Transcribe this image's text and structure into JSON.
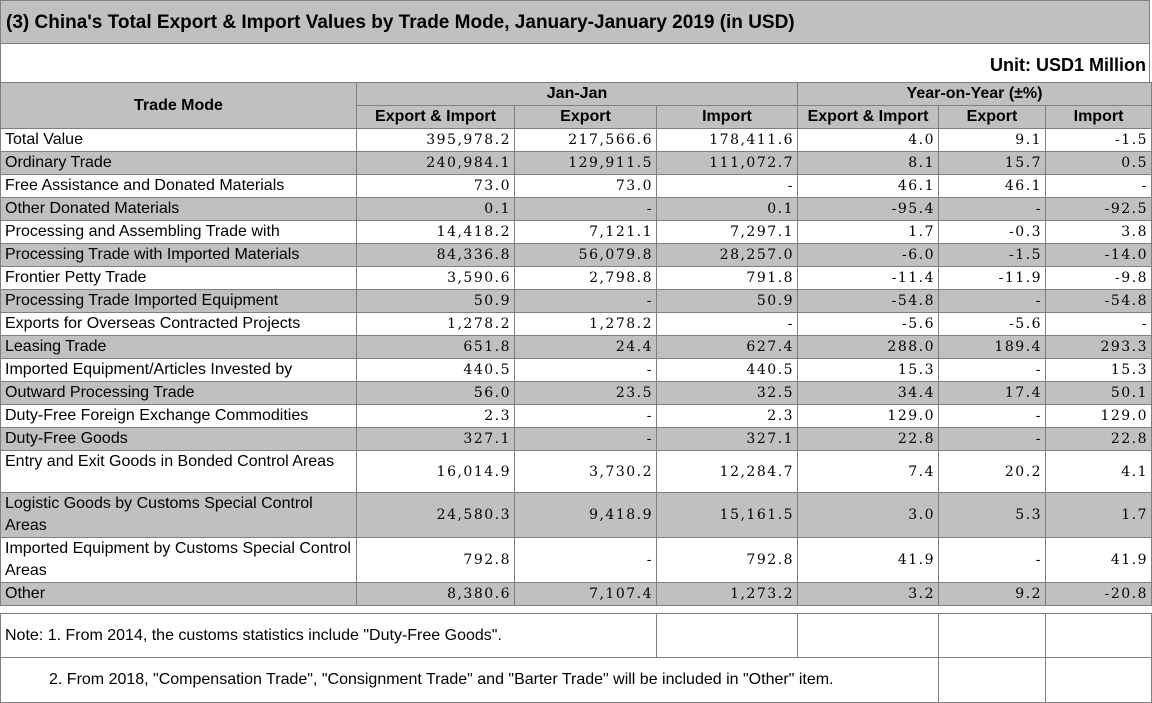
{
  "title": "(3) China's Total Export & Import Values by Trade Mode, January-January 2019 (in USD)",
  "unit": "Unit: USD1 Million",
  "headers": {
    "trade_mode": "Trade Mode",
    "jan_jan": "Jan-Jan",
    "yoy": "Year-on-Year (±%)",
    "export_import": "Export & Import",
    "export": "Export",
    "import": "Import"
  },
  "rows": [
    {
      "name": "Total Value",
      "ei": "395,978.2",
      "ex": "217,566.6",
      "im": "178,411.6",
      "y_ei": "4.0",
      "y_ex": "9.1",
      "y_im": "-1.5"
    },
    {
      "name": "Ordinary Trade",
      "ei": "240,984.1",
      "ex": "129,911.5",
      "im": "111,072.7",
      "y_ei": "8.1",
      "y_ex": "15.7",
      "y_im": "0.5"
    },
    {
      "name": "Free Assistance and Donated Materials",
      "ei": "73.0",
      "ex": "73.0",
      "im": "-",
      "y_ei": "46.1",
      "y_ex": "46.1",
      "y_im": "-"
    },
    {
      "name": "Other Donated Materials",
      "ei": "0.1",
      "ex": "-",
      "im": "0.1",
      "y_ei": "-95.4",
      "y_ex": "-",
      "y_im": "-92.5"
    },
    {
      "name": "Processing and Assembling Trade with",
      "ei": "14,418.2",
      "ex": "7,121.1",
      "im": "7,297.1",
      "y_ei": "1.7",
      "y_ex": "-0.3",
      "y_im": "3.8"
    },
    {
      "name": "Processing Trade with Imported Materials",
      "ei": "84,336.8",
      "ex": "56,079.8",
      "im": "28,257.0",
      "y_ei": "-6.0",
      "y_ex": "-1.5",
      "y_im": "-14.0"
    },
    {
      "name": "Frontier Petty Trade",
      "ei": "3,590.6",
      "ex": "2,798.8",
      "im": "791.8",
      "y_ei": "-11.4",
      "y_ex": "-11.9",
      "y_im": "-9.8"
    },
    {
      "name": "Processing Trade Imported Equipment",
      "ei": "50.9",
      "ex": "-",
      "im": "50.9",
      "y_ei": "-54.8",
      "y_ex": "-",
      "y_im": "-54.8"
    },
    {
      "name": "Exports for Overseas Contracted Projects",
      "ei": "1,278.2",
      "ex": "1,278.2",
      "im": "-",
      "y_ei": "-5.6",
      "y_ex": "-5.6",
      "y_im": "-"
    },
    {
      "name": "Leasing Trade",
      "ei": "651.8",
      "ex": "24.4",
      "im": "627.4",
      "y_ei": "288.0",
      "y_ex": "189.4",
      "y_im": "293.3"
    },
    {
      "name": "Imported Equipment/Articles Invested by",
      "ei": "440.5",
      "ex": "-",
      "im": "440.5",
      "y_ei": "15.3",
      "y_ex": "-",
      "y_im": "15.3"
    },
    {
      "name": "Outward Processing Trade",
      "ei": "56.0",
      "ex": "23.5",
      "im": "32.5",
      "y_ei": "34.4",
      "y_ex": "17.4",
      "y_im": "50.1"
    },
    {
      "name": "Duty-Free Foreign Exchange Commodities",
      "ei": "2.3",
      "ex": "-",
      "im": "2.3",
      "y_ei": "129.0",
      "y_ex": "-",
      "y_im": "129.0"
    },
    {
      "name": "Duty-Free Goods",
      "ei": "327.1",
      "ex": "-",
      "im": "327.1",
      "y_ei": "22.8",
      "y_ex": "-",
      "y_im": "22.8"
    },
    {
      "name": "Entry and Exit Goods in Bonded Control Areas",
      "ei": "16,014.9",
      "ex": "3,730.2",
      "im": "12,284.7",
      "y_ei": "7.4",
      "y_ex": "20.2",
      "y_im": "4.1"
    },
    {
      "name": "Logistic Goods by Customs Special Control Areas",
      "ei": "24,580.3",
      "ex": "9,418.9",
      "im": "15,161.5",
      "y_ei": "3.0",
      "y_ex": "5.3",
      "y_im": "1.7"
    },
    {
      "name": "Imported Equipment by Customs Special Control Areas",
      "ei": "792.8",
      "ex": "-",
      "im": "792.8",
      "y_ei": "41.9",
      "y_ex": "-",
      "y_im": "41.9"
    },
    {
      "name": "Other",
      "ei": "8,380.6",
      "ex": "7,107.4",
      "im": "1,273.2",
      "y_ei": "3.2",
      "y_ex": "9.2",
      "y_im": "-20.8"
    }
  ],
  "notes": {
    "note1": "Note: 1. From 2014, the customs statistics include \"Duty-Free Goods\".",
    "note2": "2. From 2018, \"Compensation Trade\", \"Consignment Trade\" and \"Barter Trade\" will be included in \"Other\" item."
  }
}
